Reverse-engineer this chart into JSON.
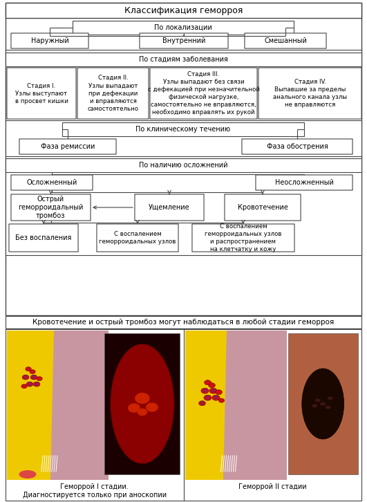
{
  "title": "Классификация геморроя",
  "bg_color": "#ffffff",
  "border_color": "#444444",
  "text_color": "#000000",
  "font_size_title": 9,
  "font_size_box": 7,
  "font_size_small": 6.2,
  "font_size_note": 7.5,
  "bottom_note": "Кровотечение и острый тромбоз могут наблюдаться в любой стадии геморроя",
  "caption_left": "Геморрой I стадии.\nДиагностируется только при аноскопии",
  "caption_right": "Геморрой II стадии"
}
